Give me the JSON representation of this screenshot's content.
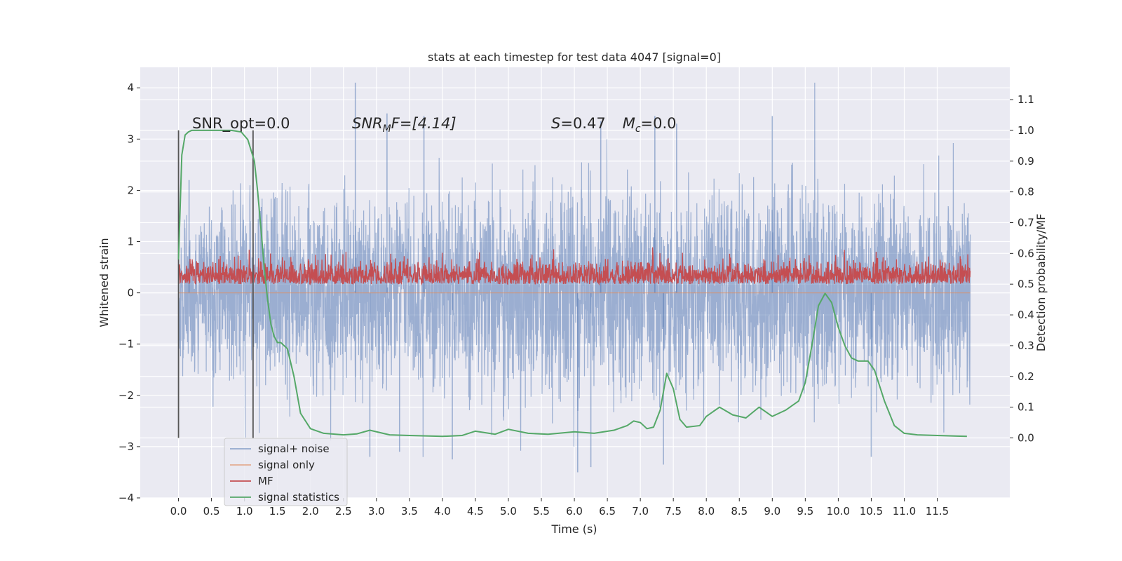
{
  "chart_data": {
    "type": "line",
    "title": "stats at each timestep for test data 4047 [signal=0]",
    "xlabel": "Time (s)",
    "ylabel_left": "Whitened strain",
    "ylabel_right": "Detection probability/MF",
    "xlim": [
      -0.58,
      12.6
    ],
    "ylim_left": [
      -4.0,
      4.4
    ],
    "ylim_right": [
      -0.195,
      1.205
    ],
    "x_ticks": [
      0.0,
      0.5,
      1.0,
      1.5,
      2.0,
      2.5,
      3.0,
      3.5,
      4.0,
      4.5,
      5.0,
      5.5,
      6.0,
      6.5,
      7.0,
      7.5,
      8.0,
      8.5,
      9.0,
      9.5,
      10.0,
      10.5,
      11.0,
      11.5
    ],
    "x_tick_labels": [
      "0.0",
      "0.5",
      "1.0",
      "1.5",
      "2.0",
      "2.5",
      "3.0",
      "3.5",
      "4.0",
      "4.5",
      "5.0",
      "5.5",
      "6.0",
      "6.5",
      "7.0",
      "7.5",
      "8.0",
      "8.5",
      "9.0",
      "9.5",
      "10.0",
      "10.5",
      "11.0",
      "11.5"
    ],
    "y_left_ticks": [
      4,
      3,
      2,
      1,
      0,
      -1,
      -2,
      -3,
      -4
    ],
    "y_left_tick_labels": [
      "4",
      "3",
      "2",
      "1",
      "0",
      "−1",
      "−2",
      "−3",
      "−4"
    ],
    "y_right_ticks": [
      1.1,
      1.0,
      0.9,
      0.8,
      0.7,
      0.6,
      0.5,
      0.4,
      0.3,
      0.2,
      0.1,
      0.0
    ],
    "y_right_tick_labels": [
      "1.1",
      "1.0",
      "0.9",
      "0.8",
      "0.7",
      "0.6",
      "0.5",
      "0.4",
      "0.3",
      "0.2",
      "0.1",
      "0.0"
    ],
    "grid": true,
    "legend_position": "lower-left",
    "colors": {
      "background": "#eaeaf2",
      "noise": "#4c72b0",
      "signal": "#dd8452",
      "mf": "#c44e52",
      "stat": "#55a868",
      "vline": "#555555"
    },
    "series": [
      {
        "name": "signal+ noise",
        "axis": "left",
        "style": "dense-noise",
        "t_start": 0.0,
        "t_end": 12.0,
        "envelope_typical": [
          -2.0,
          2.0
        ],
        "extremes": [
          -3.5,
          4.1
        ]
      },
      {
        "name": "signal only",
        "axis": "left",
        "style": "line",
        "x": [
          0.0,
          12.0
        ],
        "y": [
          0.0,
          0.0
        ]
      },
      {
        "name": "MF",
        "axis": "right",
        "style": "dense-noise",
        "t_start": 0.0,
        "t_end": 12.0,
        "baseline": 0.5,
        "band": [
          0.5,
          0.62
        ],
        "extremes": [
          0.5,
          0.67
        ]
      },
      {
        "name": "signal statistics",
        "axis": "right",
        "style": "line",
        "x": [
          0.0,
          0.05,
          0.1,
          0.15,
          0.2,
          0.3,
          0.5,
          0.8,
          0.95,
          1.05,
          1.15,
          1.2,
          1.25,
          1.3,
          1.35,
          1.4,
          1.45,
          1.5,
          1.55,
          1.65,
          1.75,
          1.85,
          2.0,
          2.2,
          2.5,
          2.7,
          2.9,
          3.2,
          3.5,
          4.0,
          4.3,
          4.5,
          4.8,
          5.0,
          5.3,
          5.6,
          6.0,
          6.3,
          6.6,
          6.8,
          6.9,
          7.0,
          7.1,
          7.2,
          7.3,
          7.4,
          7.5,
          7.6,
          7.7,
          7.9,
          8.0,
          8.2,
          8.4,
          8.6,
          8.8,
          9.0,
          9.2,
          9.4,
          9.5,
          9.6,
          9.7,
          9.8,
          9.9,
          10.0,
          10.1,
          10.2,
          10.3,
          10.45,
          10.55,
          10.7,
          10.85,
          11.0,
          11.2,
          11.5,
          11.8,
          11.95
        ],
        "y": [
          0.58,
          0.92,
          0.985,
          0.995,
          1.0,
          1.0,
          1.0,
          1.0,
          0.995,
          0.97,
          0.9,
          0.8,
          0.68,
          0.55,
          0.45,
          0.37,
          0.33,
          0.31,
          0.31,
          0.29,
          0.2,
          0.08,
          0.03,
          0.015,
          0.01,
          0.013,
          0.025,
          0.01,
          0.008,
          0.005,
          0.008,
          0.022,
          0.012,
          0.028,
          0.015,
          0.012,
          0.02,
          0.015,
          0.025,
          0.04,
          0.055,
          0.05,
          0.03,
          0.035,
          0.09,
          0.21,
          0.16,
          0.06,
          0.035,
          0.04,
          0.07,
          0.1,
          0.075,
          0.065,
          0.1,
          0.07,
          0.09,
          0.12,
          0.18,
          0.3,
          0.43,
          0.47,
          0.44,
          0.36,
          0.3,
          0.26,
          0.25,
          0.25,
          0.22,
          0.12,
          0.04,
          0.015,
          0.01,
          0.008,
          0.006,
          0.005
        ]
      }
    ],
    "vlines": [
      0.0,
      1.13
    ],
    "annotations": {
      "snr_opt": "SNR_opt=0.0",
      "snr_mf_base": "SNR",
      "snr_mf_sub": "M",
      "snr_mf_tail": "F=[4.14]",
      "s_label": "S",
      "s_value": "=0.47",
      "mc_base": "M",
      "mc_sub": "c",
      "mc_value": "=0.0"
    }
  }
}
